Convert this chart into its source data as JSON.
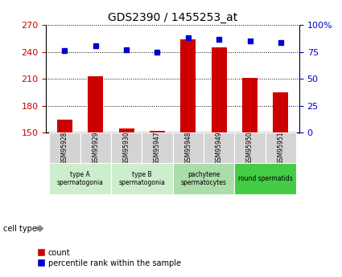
{
  "title": "GDS2390 / 1455253_at",
  "samples": [
    "GSM95928",
    "GSM95929",
    "GSM95930",
    "GSM95947",
    "GSM95948",
    "GSM95949",
    "GSM95950",
    "GSM95951"
  ],
  "count_values": [
    165,
    213,
    155,
    152,
    254,
    245,
    211,
    195
  ],
  "percentile_values": [
    76,
    81,
    77,
    75,
    88,
    87,
    85,
    84
  ],
  "ylim_left": [
    150,
    270
  ],
  "ylim_right": [
    0,
    100
  ],
  "yticks_left": [
    150,
    180,
    210,
    240,
    270
  ],
  "yticks_right": [
    0,
    25,
    50,
    75,
    100
  ],
  "ytick_right_labels": [
    "0",
    "25",
    "50",
    "75",
    "100%"
  ],
  "bar_color": "#cc0000",
  "dot_color": "#0000cc",
  "bar_bottom": 150,
  "cell_types": [
    {
      "label": "type A\nspermatogonia",
      "start": 0,
      "end": 2,
      "color": "#cceecc"
    },
    {
      "label": "type B\nspermatogonia",
      "start": 2,
      "end": 4,
      "color": "#cceecc"
    },
    {
      "label": "pachytene\nspermatocytes",
      "start": 4,
      "end": 6,
      "color": "#aaddaa"
    },
    {
      "label": "round spermatids",
      "start": 6,
      "end": 8,
      "color": "#44cc44"
    }
  ],
  "sample_box_color": "#d4d4d4",
  "legend_count_label": "count",
  "legend_percentile_label": "percentile rank within the sample",
  "cell_type_label": "cell type",
  "grid_color": "#000000",
  "background_color": "#ffffff",
  "tick_label_color_left": "#cc0000",
  "tick_label_color_right": "#0000cc"
}
